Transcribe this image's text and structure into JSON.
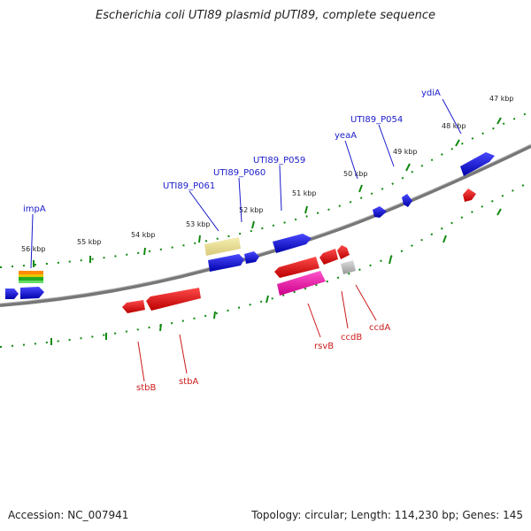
{
  "title": "Escherichia coli UTI89 plasmid pUTI89, complete sequence",
  "footer": {
    "accession": "Accession: NC_007941",
    "summary": "Topology: circular; Length: 114,230 bp; Genes: 145"
  },
  "colors": {
    "forward": "#1010dd",
    "reverse": "#ee1010",
    "backbone": "#777777",
    "ticks": "#118811",
    "blue_label": "#1a1acc",
    "red_label": "#cc1a1a"
  },
  "kbp_labels": [
    "56 kbp",
    "55 kbp",
    "54 kbp",
    "53 kbp",
    "52 kbp",
    "51 kbp",
    "50 kbp",
    "49 kbp",
    "48 kbp",
    "47 kbp"
  ],
  "blue_labels": [
    "impA",
    "UTI89_P061",
    "UTI89_P060",
    "UTI89_P059",
    "yeaA",
    "UTI89_P054",
    "ydiA"
  ],
  "red_labels": [
    "stbB",
    "stbA",
    "rsvB",
    "ccdB",
    "ccdA"
  ]
}
